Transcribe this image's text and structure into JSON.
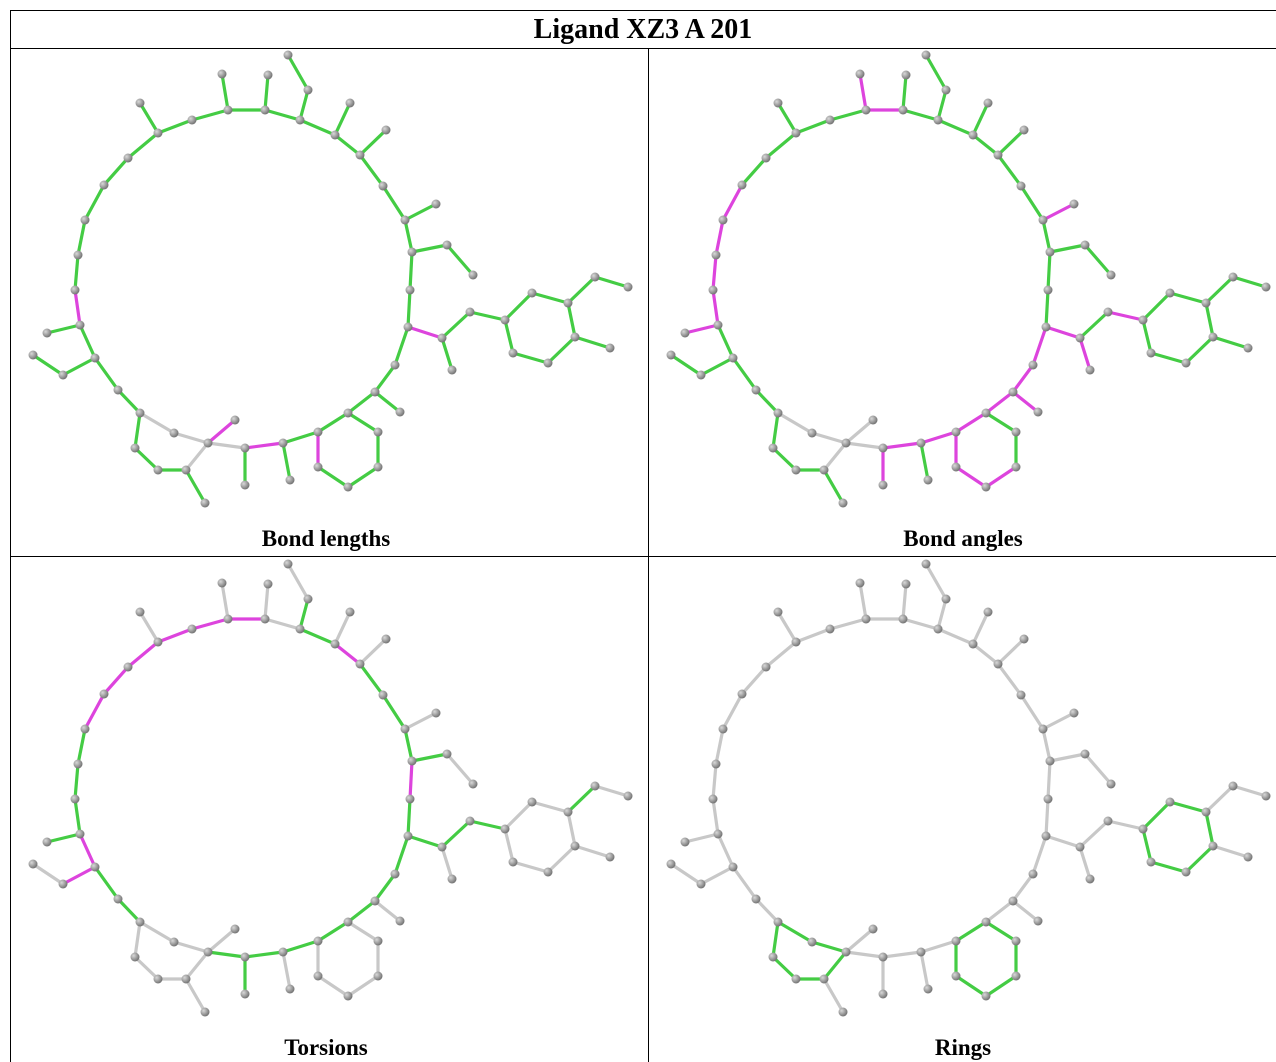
{
  "title": "Ligand XZ3 A 201",
  "panels": [
    {
      "caption": "Bond lengths"
    },
    {
      "caption": "Bond angles"
    },
    {
      "caption": "Torsions"
    },
    {
      "caption": "Rings"
    }
  ]
}
